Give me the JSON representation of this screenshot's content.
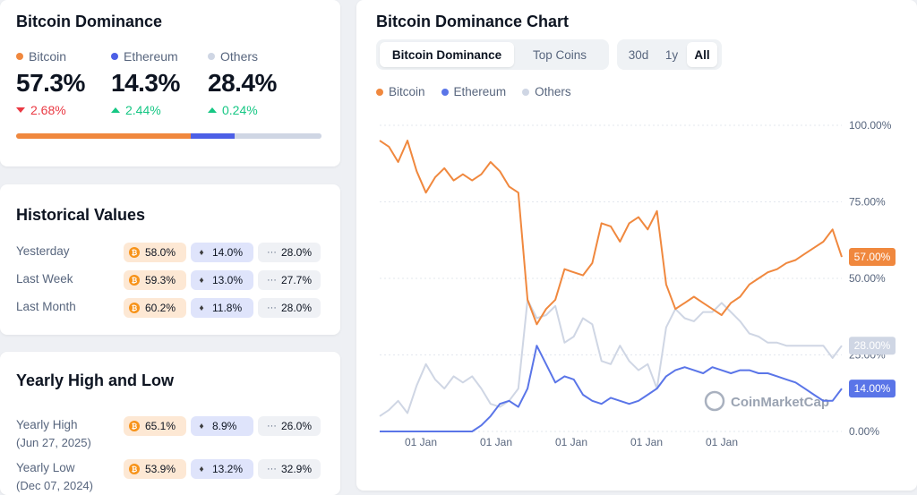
{
  "dominance": {
    "title": "Bitcoin Dominance",
    "coins": [
      {
        "name": "Bitcoin",
        "color": "#f0883e",
        "pct": "57.3%",
        "change": "2.68%",
        "dir": "down"
      },
      {
        "name": "Ethereum",
        "color": "#4c5fe6",
        "pct": "14.3%",
        "change": "2.44%",
        "dir": "up"
      },
      {
        "name": "Others",
        "color": "#cfd6e4",
        "pct": "28.4%",
        "change": "0.24%",
        "dir": "up"
      }
    ],
    "bar_fraction": [
      0.573,
      0.143,
      0.284
    ]
  },
  "historical": {
    "title": "Historical Values",
    "rows": [
      {
        "label": "Yesterday",
        "btc": "58.0%",
        "eth": "14.0%",
        "others": "28.0%"
      },
      {
        "label": "Last Week",
        "btc": "59.3%",
        "eth": "13.0%",
        "others": "27.7%"
      },
      {
        "label": "Last Month",
        "btc": "60.2%",
        "eth": "11.8%",
        "others": "28.0%"
      }
    ]
  },
  "yearly": {
    "title": "Yearly High and Low",
    "rows": [
      {
        "label": "Yearly High",
        "date": "(Jun 27, 2025)",
        "btc": "65.1%",
        "eth": "8.9%",
        "others": "26.0%"
      },
      {
        "label": "Yearly Low",
        "date": "(Dec 07, 2024)",
        "btc": "53.9%",
        "eth": "13.2%",
        "others": "32.9%"
      }
    ]
  },
  "chart": {
    "title": "Bitcoin Dominance Chart",
    "tabs": [
      {
        "label": "Bitcoin Dominance",
        "active": true
      },
      {
        "label": "Top Coins",
        "active": false
      }
    ],
    "ranges": [
      {
        "label": "30d",
        "active": false
      },
      {
        "label": "1y",
        "active": false
      },
      {
        "label": "All",
        "active": true
      }
    ],
    "watermark": "CoinMarketCap",
    "icons": {
      "bitcoin": "bitcoin-icon",
      "ethereum": "ethereum-icon",
      "others": "ellipsis-icon",
      "watermark": "coinmarketcap-logo-icon"
    }
  },
  "chart_data": {
    "type": "line",
    "legend": [
      "Bitcoin",
      "Ethereum",
      "Others"
    ],
    "legend_position": "top-left",
    "y_ticks": [
      "100.00%",
      "75.00%",
      "50.00%",
      "25.00%",
      "0.00%"
    ],
    "x_ticks": [
      "01 Jan",
      "01 Jan",
      "01 Jan",
      "01 Jan",
      "01 Jan"
    ],
    "ylim": [
      0,
      100
    ],
    "grid": true,
    "x": [
      0,
      2,
      4,
      6,
      8,
      10,
      12,
      14,
      16,
      18,
      20,
      22,
      24,
      26,
      28,
      30,
      32,
      34,
      36,
      38,
      40,
      42,
      44,
      46,
      48,
      50,
      52,
      54,
      56,
      58,
      60,
      62,
      64,
      66,
      68,
      70,
      72,
      74,
      76,
      78,
      80,
      82,
      84,
      86,
      88,
      90,
      92,
      94,
      96,
      98,
      100
    ],
    "series": [
      {
        "name": "Bitcoin",
        "color": "#f0883e",
        "end_label": "57.00%",
        "values": [
          95,
          93,
          88,
          95,
          85,
          78,
          83,
          86,
          82,
          84,
          82,
          84,
          88,
          85,
          80,
          78,
          43,
          35,
          40,
          43,
          53,
          52,
          51,
          55,
          68,
          67,
          62,
          68,
          70,
          66,
          72,
          48,
          40,
          42,
          44,
          42,
          40,
          38,
          42,
          44,
          48,
          50,
          52,
          53,
          55,
          56,
          58,
          60,
          62,
          66,
          57
        ]
      },
      {
        "name": "Ethereum",
        "color": "#5a75e8",
        "end_label": "14.00%",
        "values": [
          0,
          0,
          0,
          0,
          0,
          0,
          0,
          0,
          0,
          0,
          0,
          2,
          5,
          9,
          10,
          8,
          14,
          28,
          22,
          16,
          18,
          17,
          12,
          10,
          9,
          11,
          10,
          9,
          10,
          12,
          14,
          18,
          20,
          21,
          20,
          19,
          21,
          20,
          19,
          20,
          20,
          19,
          19,
          18,
          17,
          16,
          14,
          12,
          10,
          10,
          14
        ]
      },
      {
        "name": "Others",
        "color": "#cfd6e4",
        "end_label": "28.00%",
        "values": [
          5,
          7,
          10,
          6,
          15,
          22,
          17,
          14,
          18,
          16,
          18,
          14,
          9,
          8,
          10,
          14,
          43,
          37,
          38,
          41,
          29,
          31,
          37,
          35,
          23,
          22,
          28,
          23,
          20,
          22,
          14,
          34,
          40,
          37,
          36,
          39,
          39,
          42,
          39,
          36,
          32,
          31,
          29,
          29,
          28,
          28,
          28,
          28,
          28,
          24,
          28
        ]
      }
    ]
  }
}
